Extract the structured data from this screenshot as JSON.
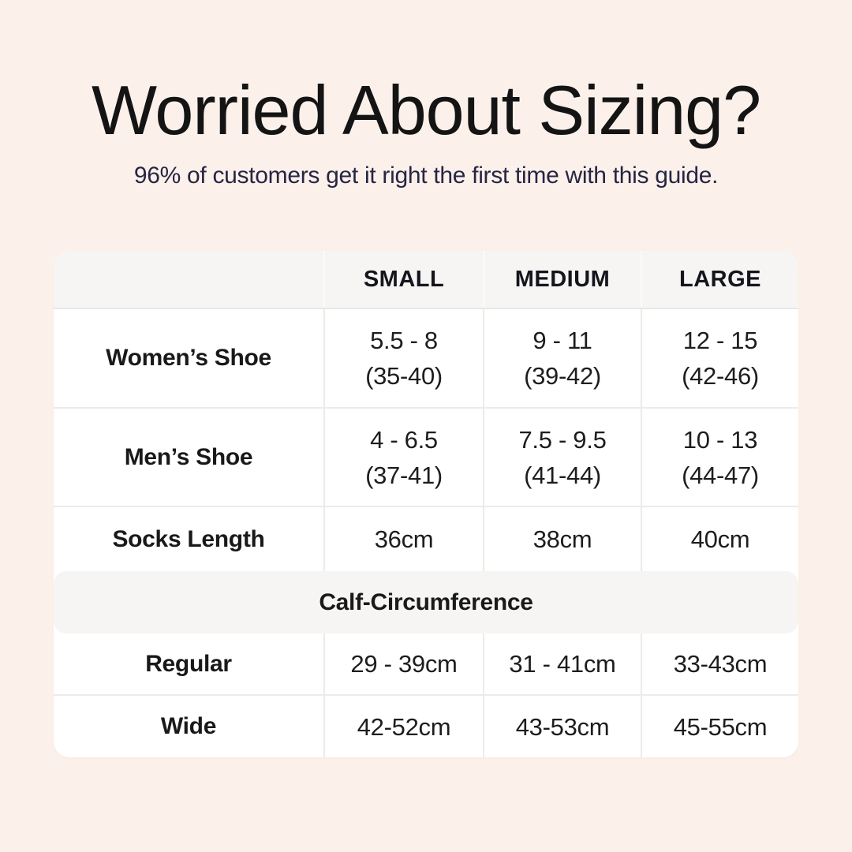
{
  "page": {
    "background_color": "#fcf1ea",
    "title_color": "#141414",
    "subtitle_color": "#272544",
    "table_bg_color": "#ffffff",
    "header_band_color": "#f6f5f4"
  },
  "header": {
    "title": "Worried About Sizing?",
    "subtitle": "96% of customers get it right the first time with this guide."
  },
  "table": {
    "column_headers": [
      "SMALL",
      "MEDIUM",
      "LARGE"
    ],
    "rows": [
      {
        "label": "Women’s Shoe",
        "cells": [
          {
            "line1": "5.5 - 8",
            "line2": "(35-40)"
          },
          {
            "line1": "9 - 11",
            "line2": "(39-42)"
          },
          {
            "line1": "12 - 15",
            "line2": "(42-46)"
          }
        ]
      },
      {
        "label": "Men’s Shoe",
        "cells": [
          {
            "line1": "4 - 6.5",
            "line2": "(37-41)"
          },
          {
            "line1": "7.5 - 9.5",
            "line2": "(41-44)"
          },
          {
            "line1": "10 - 13",
            "line2": "(44-47)"
          }
        ]
      },
      {
        "label": "Socks Length",
        "cells": [
          {
            "line1": "36cm"
          },
          {
            "line1": "38cm"
          },
          {
            "line1": "40cm"
          }
        ]
      }
    ],
    "section_header": "Calf-Circumference",
    "section_rows": [
      {
        "label": "Regular",
        "cells": [
          {
            "line1": "29 - 39cm"
          },
          {
            "line1": "31 - 41cm"
          },
          {
            "line1": "33-43cm"
          }
        ]
      },
      {
        "label": "Wide",
        "cells": [
          {
            "line1": "42-52cm"
          },
          {
            "line1": "43-53cm"
          },
          {
            "line1": "45-55cm"
          }
        ]
      }
    ]
  },
  "chart_data": {
    "type": "table",
    "title": "Worried About Sizing?",
    "subtitle": "96% of customers get it right the first time with this guide.",
    "columns": [
      "",
      "SMALL",
      "MEDIUM",
      "LARGE"
    ],
    "rows": [
      [
        "Women’s Shoe",
        "5.5 - 8 (35-40)",
        "9 - 11 (39-42)",
        "12 - 15 (42-46)"
      ],
      [
        "Men’s Shoe",
        "4 - 6.5 (37-41)",
        "7.5 - 9.5 (41-44)",
        "10 - 13 (44-47)"
      ],
      [
        "Socks Length",
        "36cm",
        "38cm",
        "40cm"
      ],
      [
        "Calf-Circumference (section header)",
        "",
        "",
        ""
      ],
      [
        "Regular",
        "29 - 39cm",
        "31 - 41cm",
        "33-43cm"
      ],
      [
        "Wide",
        "42-52cm",
        "43-53cm",
        "45-55cm"
      ]
    ]
  }
}
